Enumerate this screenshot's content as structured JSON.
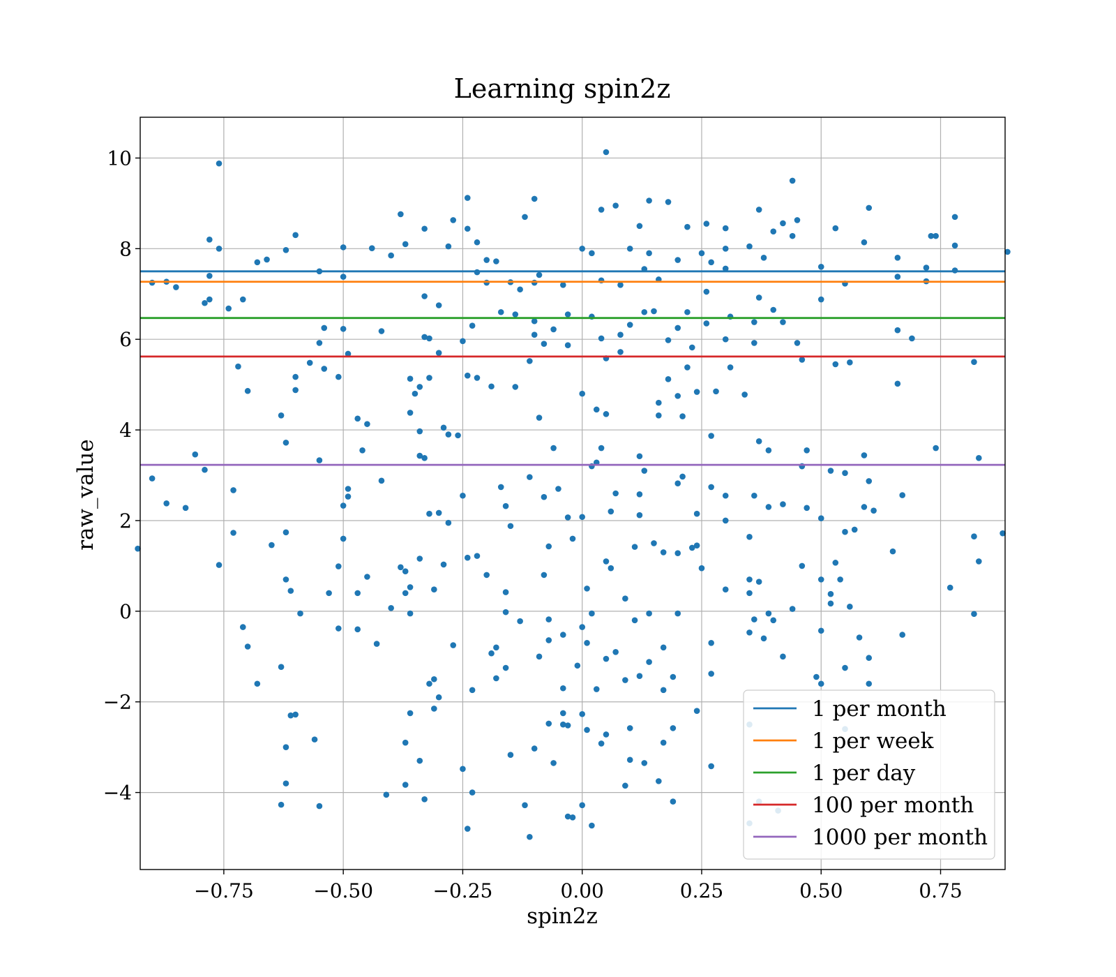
{
  "chart_data": {
    "type": "scatter",
    "title": "Learning spin2z",
    "xlabel": "spin2z",
    "ylabel": "raw_value",
    "xlim": [
      -0.925,
      0.885
    ],
    "ylim": [
      -5.7,
      10.9
    ],
    "xticks": [
      -0.75,
      -0.5,
      -0.25,
      0.0,
      0.25,
      0.5,
      0.75
    ],
    "xtick_labels": [
      "−0.75",
      "−0.50",
      "−0.25",
      "0.00",
      "0.25",
      "0.50",
      "0.75"
    ],
    "yticks": [
      -4,
      -2,
      0,
      2,
      4,
      6,
      8,
      10
    ],
    "ytick_labels": [
      "−4",
      "−2",
      "0",
      "2",
      "4",
      "6",
      "8",
      "10"
    ],
    "grid": true,
    "legend_position": "lower right",
    "scatter_color": "#1f77b4",
    "points": [
      [
        -0.76,
        9.88
      ],
      [
        0.05,
        10.13
      ],
      [
        0.44,
        9.5
      ],
      [
        -0.24,
        9.12
      ],
      [
        -0.1,
        9.1
      ],
      [
        0.14,
        9.06
      ],
      [
        0.18,
        9.03
      ],
      [
        0.07,
        8.95
      ],
      [
        0.6,
        8.9
      ],
      [
        0.37,
        8.86
      ],
      [
        -0.38,
        8.76
      ],
      [
        0.78,
        8.7
      ],
      [
        0.04,
        8.86
      ],
      [
        -0.27,
        8.63
      ],
      [
        0.26,
        8.55
      ],
      [
        0.45,
        8.63
      ],
      [
        0.42,
        8.56
      ],
      [
        0.53,
        8.45
      ],
      [
        -0.33,
        8.44
      ],
      [
        0.22,
        8.48
      ],
      [
        0.3,
        8.45
      ],
      [
        -0.12,
        8.7
      ],
      [
        0.12,
        8.5
      ],
      [
        -0.6,
        8.3
      ],
      [
        0.4,
        8.38
      ],
      [
        -0.78,
        8.2
      ],
      [
        0.73,
        8.28
      ],
      [
        0.74,
        8.28
      ],
      [
        0.44,
        8.28
      ],
      [
        -0.24,
        8.44
      ],
      [
        -0.22,
        8.14
      ],
      [
        0.59,
        8.14
      ],
      [
        0.66,
        7.8
      ],
      [
        -0.76,
        8.0
      ],
      [
        -0.5,
        8.03
      ],
      [
        -0.62,
        7.97
      ],
      [
        -0.44,
        8.01
      ],
      [
        0.0,
        8.0
      ],
      [
        0.02,
        7.9
      ],
      [
        0.3,
        8.0
      ],
      [
        0.35,
        8.05
      ],
      [
        0.78,
        8.07
      ],
      [
        -0.28,
        8.05
      ],
      [
        0.25,
        7.9
      ],
      [
        -0.37,
        8.1
      ],
      [
        0.1,
        8.0
      ],
      [
        0.14,
        7.9
      ],
      [
        -0.4,
        7.85
      ],
      [
        -0.2,
        7.75
      ],
      [
        0.5,
        7.6
      ],
      [
        -0.68,
        7.7
      ],
      [
        -0.66,
        7.76
      ],
      [
        0.38,
        7.8
      ],
      [
        -0.18,
        7.72
      ],
      [
        0.2,
        7.75
      ],
      [
        0.72,
        7.58
      ],
      [
        0.78,
        7.52
      ],
      [
        -0.55,
        7.5
      ],
      [
        -0.09,
        7.42
      ],
      [
        0.27,
        7.7
      ],
      [
        -0.22,
        7.48
      ],
      [
        0.13,
        7.55
      ],
      [
        -0.5,
        7.38
      ],
      [
        0.3,
        7.56
      ],
      [
        -0.78,
        7.4
      ],
      [
        0.66,
        7.38
      ],
      [
        0.72,
        7.28
      ],
      [
        -0.87,
        7.27
      ],
      [
        -0.85,
        7.15
      ],
      [
        0.55,
        7.23
      ],
      [
        -0.1,
        7.25
      ],
      [
        -0.2,
        7.25
      ],
      [
        0.04,
        7.3
      ],
      [
        0.16,
        7.32
      ],
      [
        -0.15,
        7.26
      ],
      [
        0.26,
        7.05
      ],
      [
        -0.04,
        7.2
      ],
      [
        0.08,
        7.2
      ],
      [
        -0.13,
        7.1
      ],
      [
        -0.33,
        6.95
      ],
      [
        0.37,
        6.92
      ],
      [
        0.5,
        6.88
      ],
      [
        -0.78,
        6.88
      ],
      [
        -0.79,
        6.8
      ],
      [
        -0.71,
        6.88
      ],
      [
        -0.74,
        6.68
      ],
      [
        0.4,
        6.65
      ],
      [
        -0.3,
        6.75
      ],
      [
        0.13,
        6.6
      ],
      [
        -0.17,
        6.6
      ],
      [
        -0.14,
        6.55
      ],
      [
        0.22,
        6.6
      ],
      [
        -0.03,
        6.55
      ],
      [
        0.42,
        6.38
      ],
      [
        0.02,
        6.5
      ],
      [
        -0.1,
        6.4
      ],
      [
        0.26,
        6.35
      ],
      [
        0.15,
        6.62
      ],
      [
        0.31,
        6.5
      ],
      [
        0.36,
        6.38
      ],
      [
        -0.23,
        6.3
      ],
      [
        -0.06,
        6.22
      ],
      [
        0.1,
        6.32
      ],
      [
        -0.54,
        6.25
      ],
      [
        -0.5,
        6.23
      ],
      [
        -0.42,
        6.18
      ],
      [
        -0.1,
        6.1
      ],
      [
        0.2,
        6.25
      ],
      [
        0.66,
        6.2
      ],
      [
        0.69,
        6.02
      ],
      [
        -0.32,
        6.02
      ],
      [
        -0.25,
        5.96
      ],
      [
        0.08,
        6.1
      ],
      [
        0.04,
        6.02
      ],
      [
        0.3,
        6.0
      ],
      [
        0.18,
        5.98
      ],
      [
        0.36,
        5.92
      ],
      [
        -0.55,
        5.92
      ],
      [
        0.45,
        5.92
      ],
      [
        -0.08,
        5.9
      ],
      [
        -0.49,
        5.68
      ],
      [
        -0.3,
        5.7
      ],
      [
        0.08,
        5.72
      ],
      [
        -0.03,
        5.87
      ],
      [
        0.05,
        5.58
      ],
      [
        0.23,
        5.82
      ],
      [
        0.56,
        5.49
      ],
      [
        0.46,
        5.55
      ],
      [
        0.53,
        5.45
      ],
      [
        0.82,
        5.5
      ],
      [
        -0.57,
        5.48
      ],
      [
        -0.72,
        5.4
      ],
      [
        -0.54,
        5.35
      ],
      [
        0.31,
        5.38
      ],
      [
        -0.11,
        5.52
      ],
      [
        0.22,
        5.38
      ],
      [
        -0.6,
        5.17
      ],
      [
        -0.51,
        5.17
      ],
      [
        -0.36,
        5.13
      ],
      [
        -0.22,
        5.15
      ],
      [
        -0.35,
        4.8
      ],
      [
        -0.7,
        4.86
      ],
      [
        -0.6,
        4.88
      ],
      [
        0.28,
        4.85
      ],
      [
        0.66,
        5.02
      ],
      [
        0.18,
        5.12
      ],
      [
        -0.24,
        5.2
      ],
      [
        -0.32,
        5.15
      ],
      [
        -0.34,
        4.95
      ],
      [
        0.34,
        4.78
      ],
      [
        -0.19,
        4.96
      ],
      [
        0.24,
        4.84
      ],
      [
        0.16,
        4.6
      ],
      [
        0.0,
        4.8
      ],
      [
        -0.14,
        4.95
      ],
      [
        0.03,
        4.45
      ],
      [
        0.2,
        4.75
      ],
      [
        -0.29,
        4.05
      ],
      [
        0.16,
        4.32
      ],
      [
        0.21,
        4.3
      ],
      [
        -0.47,
        4.25
      ],
      [
        -0.45,
        4.13
      ],
      [
        -0.63,
        4.32
      ],
      [
        -0.36,
        4.38
      ],
      [
        0.05,
        4.35
      ],
      [
        -0.09,
        4.27
      ],
      [
        0.27,
        3.87
      ],
      [
        -0.34,
        3.97
      ],
      [
        -0.28,
        3.9
      ],
      [
        0.37,
        3.75
      ],
      [
        -0.62,
        3.72
      ],
      [
        -0.26,
        3.88
      ],
      [
        0.74,
        3.6
      ],
      [
        0.39,
        3.55
      ],
      [
        -0.46,
        3.55
      ],
      [
        0.47,
        3.55
      ],
      [
        0.04,
        3.6
      ],
      [
        -0.06,
        3.6
      ],
      [
        -0.81,
        3.46
      ],
      [
        -0.34,
        3.43
      ],
      [
        0.59,
        3.44
      ],
      [
        0.83,
        3.38
      ],
      [
        -0.55,
        3.33
      ],
      [
        0.12,
        3.42
      ],
      [
        -0.33,
        3.38
      ],
      [
        0.03,
        3.28
      ],
      [
        0.02,
        3.2
      ],
      [
        0.46,
        3.2
      ],
      [
        -0.79,
        3.12
      ],
      [
        0.13,
        3.1
      ],
      [
        0.52,
        3.1
      ],
      [
        0.55,
        3.05
      ],
      [
        -0.9,
        2.93
      ],
      [
        0.21,
        2.97
      ],
      [
        -0.11,
        2.96
      ],
      [
        0.6,
        2.87
      ],
      [
        0.2,
        2.82
      ],
      [
        -0.73,
        2.67
      ],
      [
        -0.49,
        2.7
      ],
      [
        -0.42,
        2.88
      ],
      [
        -0.05,
        2.7
      ],
      [
        0.27,
        2.74
      ],
      [
        -0.17,
        2.74
      ],
      [
        0.3,
        2.55
      ],
      [
        0.67,
        2.56
      ],
      [
        0.36,
        2.55
      ],
      [
        -0.25,
        2.55
      ],
      [
        -0.49,
        2.53
      ],
      [
        -0.08,
        2.52
      ],
      [
        0.07,
        2.6
      ],
      [
        0.12,
        2.58
      ],
      [
        0.42,
        2.36
      ],
      [
        0.39,
        2.3
      ],
      [
        0.59,
        2.3
      ],
      [
        0.47,
        2.28
      ],
      [
        -0.87,
        2.38
      ],
      [
        -0.83,
        2.28
      ],
      [
        -0.3,
        2.17
      ],
      [
        -0.16,
        2.32
      ],
      [
        0.61,
        2.22
      ],
      [
        0.24,
        2.15
      ],
      [
        -0.5,
        2.33
      ],
      [
        -0.32,
        2.15
      ],
      [
        0.06,
        2.2
      ],
      [
        0.0,
        2.08
      ],
      [
        -0.03,
        2.07
      ],
      [
        0.12,
        2.12
      ],
      [
        0.5,
        2.05
      ],
      [
        0.3,
        2.0
      ],
      [
        -0.28,
        1.95
      ],
      [
        -0.73,
        1.73
      ],
      [
        0.57,
        1.8
      ],
      [
        -0.62,
        1.74
      ],
      [
        -0.15,
        1.88
      ],
      [
        0.55,
        1.75
      ],
      [
        -0.02,
        1.6
      ],
      [
        0.35,
        1.64
      ],
      [
        0.82,
        1.65
      ],
      [
        0.88,
        1.72
      ],
      [
        -0.5,
        1.6
      ],
      [
        0.15,
        1.5
      ],
      [
        -0.93,
        1.38
      ],
      [
        -0.65,
        1.46
      ],
      [
        0.23,
        1.4
      ],
      [
        -0.07,
        1.43
      ],
      [
        0.11,
        1.42
      ],
      [
        0.24,
        1.45
      ],
      [
        0.65,
        1.32
      ],
      [
        -0.22,
        1.22
      ],
      [
        -0.24,
        1.18
      ],
      [
        0.2,
        1.28
      ],
      [
        0.17,
        1.3
      ],
      [
        -0.34,
        1.16
      ],
      [
        0.05,
        1.1
      ],
      [
        0.53,
        1.07
      ],
      [
        0.83,
        1.1
      ],
      [
        -0.76,
        1.02
      ],
      [
        0.46,
        1.0
      ],
      [
        -0.29,
        1.03
      ],
      [
        -0.51,
        0.99
      ],
      [
        0.06,
        0.95
      ],
      [
        0.25,
        0.95
      ],
      [
        -0.38,
        0.97
      ],
      [
        -0.37,
        0.88
      ],
      [
        -0.2,
        0.8
      ],
      [
        -0.08,
        0.8
      ],
      [
        0.37,
        0.65
      ],
      [
        0.35,
        0.7
      ],
      [
        0.5,
        0.7
      ],
      [
        -0.62,
        0.7
      ],
      [
        -0.45,
        0.76
      ],
      [
        0.54,
        0.7
      ],
      [
        0.77,
        0.52
      ],
      [
        -0.36,
        0.53
      ],
      [
        -0.61,
        0.45
      ],
      [
        0.3,
        0.48
      ],
      [
        0.01,
        0.5
      ],
      [
        -0.47,
        0.4
      ],
      [
        -0.16,
        0.42
      ],
      [
        -0.31,
        0.48
      ],
      [
        0.35,
        0.4
      ],
      [
        -0.53,
        0.4
      ],
      [
        -0.37,
        0.4
      ],
      [
        0.52,
        0.38
      ],
      [
        0.09,
        0.28
      ],
      [
        0.52,
        0.17
      ],
      [
        0.56,
        0.1
      ],
      [
        -0.4,
        0.07
      ],
      [
        0.44,
        0.05
      ],
      [
        -0.59,
        -0.05
      ],
      [
        -0.36,
        -0.05
      ],
      [
        0.14,
        -0.05
      ],
      [
        0.2,
        -0.05
      ],
      [
        -0.16,
        -0.02
      ],
      [
        0.02,
        -0.05
      ],
      [
        0.39,
        -0.05
      ],
      [
        0.82,
        -0.06
      ],
      [
        0.36,
        -0.18
      ],
      [
        0.4,
        -0.2
      ],
      [
        -0.13,
        -0.22
      ],
      [
        -0.07,
        -0.18
      ],
      [
        0.11,
        -0.2
      ],
      [
        -0.71,
        -0.35
      ],
      [
        -0.51,
        -0.38
      ],
      [
        -0.47,
        -0.4
      ],
      [
        0.0,
        -0.35
      ],
      [
        0.35,
        -0.47
      ],
      [
        0.5,
        -0.43
      ],
      [
        0.67,
        -0.52
      ],
      [
        0.58,
        -0.58
      ],
      [
        0.38,
        -0.6
      ],
      [
        -0.04,
        -0.52
      ],
      [
        -0.07,
        -0.64
      ],
      [
        0.01,
        -0.7
      ],
      [
        -0.43,
        -0.72
      ],
      [
        -0.7,
        -0.78
      ],
      [
        -0.27,
        -0.75
      ],
      [
        -0.18,
        -0.8
      ],
      [
        0.17,
        -0.8
      ],
      [
        0.27,
        -0.7
      ],
      [
        0.42,
        -1.0
      ],
      [
        0.6,
        -1.03
      ],
      [
        -0.19,
        -0.93
      ],
      [
        0.07,
        -0.9
      ],
      [
        -0.09,
        -1.0
      ],
      [
        0.05,
        -1.05
      ],
      [
        0.14,
        -1.12
      ],
      [
        -0.16,
        -1.25
      ],
      [
        -0.01,
        -1.2
      ],
      [
        0.55,
        -1.25
      ],
      [
        -0.63,
        -1.23
      ],
      [
        0.19,
        -1.45
      ],
      [
        0.49,
        -1.45
      ],
      [
        0.12,
        -1.43
      ],
      [
        0.09,
        -1.52
      ],
      [
        -0.31,
        -1.5
      ],
      [
        0.27,
        -1.38
      ],
      [
        -0.18,
        -1.48
      ],
      [
        0.5,
        -1.6
      ],
      [
        0.6,
        -1.6
      ],
      [
        -0.68,
        -1.6
      ],
      [
        -0.32,
        -1.6
      ],
      [
        -0.04,
        -1.7
      ],
      [
        0.03,
        -1.72
      ],
      [
        0.17,
        -1.74
      ],
      [
        -0.23,
        -1.74
      ],
      [
        -0.61,
        -2.3
      ],
      [
        -0.6,
        -2.28
      ],
      [
        -0.3,
        -1.9
      ],
      [
        -0.31,
        -2.15
      ],
      [
        0.24,
        -2.2
      ],
      [
        -0.36,
        -2.25
      ],
      [
        0.0,
        -2.27
      ],
      [
        -0.04,
        -2.25
      ],
      [
        0.19,
        -2.58
      ],
      [
        0.35,
        -2.5
      ],
      [
        0.55,
        -2.6
      ],
      [
        -0.07,
        -2.48
      ],
      [
        -0.03,
        -2.52
      ],
      [
        0.01,
        -2.62
      ],
      [
        0.05,
        -2.72
      ],
      [
        0.1,
        -2.58
      ],
      [
        -0.62,
        -3.0
      ],
      [
        -0.56,
        -2.83
      ],
      [
        -0.37,
        -2.9
      ],
      [
        0.04,
        -2.92
      ],
      [
        -0.1,
        -3.03
      ],
      [
        0.17,
        -2.9
      ],
      [
        -0.15,
        -3.17
      ],
      [
        0.1,
        -3.28
      ],
      [
        -0.06,
        -3.35
      ],
      [
        0.13,
        -3.35
      ],
      [
        -0.34,
        -3.3
      ],
      [
        -0.25,
        -3.48
      ],
      [
        0.27,
        -3.42
      ],
      [
        -0.62,
        -3.8
      ],
      [
        -0.37,
        -3.83
      ],
      [
        0.16,
        -3.75
      ],
      [
        0.09,
        -3.85
      ],
      [
        -0.41,
        -4.05
      ],
      [
        -0.23,
        -4.0
      ],
      [
        -0.33,
        -4.15
      ],
      [
        0.19,
        -4.2
      ],
      [
        -0.63,
        -4.27
      ],
      [
        -0.55,
        -4.3
      ],
      [
        -0.12,
        -4.28
      ],
      [
        0.0,
        -4.28
      ],
      [
        0.37,
        -4.2
      ],
      [
        0.41,
        -4.4
      ],
      [
        -0.03,
        -4.53
      ],
      [
        -0.02,
        -4.55
      ],
      [
        0.35,
        -4.68
      ],
      [
        -0.24,
        -4.8
      ],
      [
        0.02,
        -4.73
      ],
      [
        -0.11,
        -4.98
      ],
      [
        -0.04,
        -2.5
      ],
      [
        0.46,
        3.2
      ],
      [
        0.89,
        7.93
      ],
      [
        -0.9,
        7.25
      ],
      [
        -0.33,
        6.05
      ]
    ],
    "hlines": [
      {
        "name": "1 per month",
        "y": 7.5,
        "color": "#1f77b4"
      },
      {
        "name": "1 per week",
        "y": 7.27,
        "color": "#ff7f0e"
      },
      {
        "name": "1 per day",
        "y": 6.47,
        "color": "#2ca02c"
      },
      {
        "name": "100 per month",
        "y": 5.62,
        "color": "#d62728"
      },
      {
        "name": "1000 per month",
        "y": 3.23,
        "color": "#9467bd"
      }
    ]
  }
}
